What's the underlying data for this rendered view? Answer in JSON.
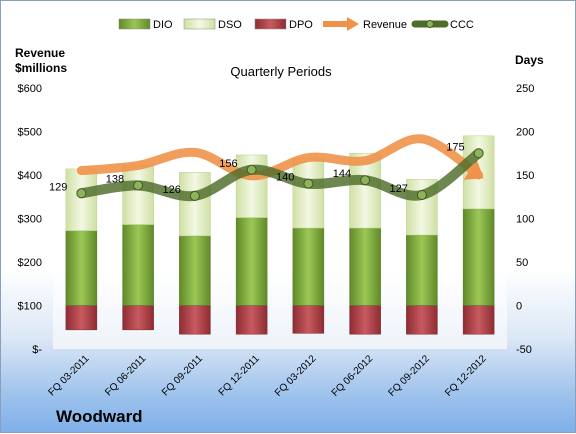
{
  "chart_data": {
    "type": "bar",
    "title": "Quarterly Periods",
    "company": "Woodward",
    "left_axis_label_line1": "Revenue",
    "left_axis_label_line2": "$millions",
    "right_axis_label": "Days",
    "categories": [
      "FQ 03-2011",
      "FQ 06-2011",
      "FQ 09-2011",
      "FQ 12-2011",
      "FQ 03-2012",
      "FQ 06-2012",
      "FQ 09-2012",
      "FQ 12-2012"
    ],
    "left_ylim": [
      0,
      600
    ],
    "left_ticks": [
      "$-",
      "$100",
      "$200",
      "$300",
      "$400",
      "$500",
      "$600"
    ],
    "left_tick_values": [
      0,
      100,
      200,
      300,
      400,
      500,
      600
    ],
    "right_ylim": [
      -50,
      250
    ],
    "right_ticks": [
      "-50",
      "0",
      "50",
      "100",
      "150",
      "200",
      "250"
    ],
    "right_tick_values": [
      -50,
      0,
      50,
      100,
      150,
      200,
      250
    ],
    "series": [
      {
        "name": "DIO",
        "axis": "days",
        "values": [
          86,
          93,
          80,
          101,
          89,
          89,
          81,
          111
        ],
        "color": "#7aa53c"
      },
      {
        "name": "DSO",
        "axis": "days",
        "values": [
          71,
          68,
          73,
          72,
          80,
          86,
          64,
          84
        ],
        "color": "#e4efc8"
      },
      {
        "name": "DPO",
        "axis": "days",
        "values": [
          -28,
          -28,
          -33,
          -33,
          -32,
          -33,
          -33,
          -33
        ],
        "color": "#b5454b"
      },
      {
        "name": "Revenue",
        "axis": "revenue",
        "values": [
          410,
          422,
          452,
          398,
          440,
          433,
          483,
          400
        ],
        "color": "#f0924a"
      },
      {
        "name": "CCC",
        "axis": "days",
        "values": [
          129,
          138,
          126,
          156,
          140,
          144,
          127,
          175
        ],
        "labels": [
          "129",
          "138",
          "126",
          "156",
          "140",
          "144",
          "127",
          "175"
        ],
        "color": "#4e6d2a"
      }
    ],
    "legend_position": "top",
    "grid": false
  }
}
